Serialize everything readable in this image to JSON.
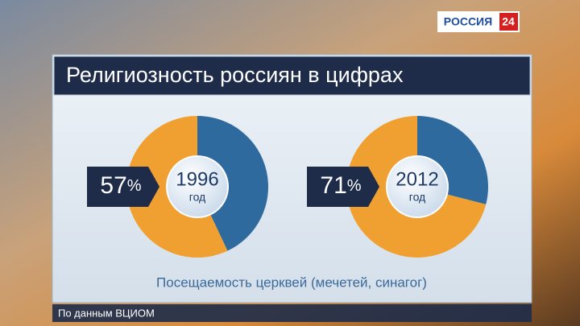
{
  "channel": {
    "name": "РОССИЯ",
    "number": "24"
  },
  "title": "Религиозность россиян в цифрах",
  "caption": "Посещаемость церквей (мечетей, синагог)",
  "source": "По данным ВЦИОМ",
  "chart_data": [
    {
      "type": "pie",
      "center_label": "1996",
      "center_sublabel": "год",
      "values": [
        57,
        43
      ],
      "value_labels": [
        "57%",
        null
      ],
      "colors": [
        "#f0a030",
        "#2f6a9e"
      ]
    },
    {
      "type": "pie",
      "center_label": "2012",
      "center_sublabel": "год",
      "values": [
        71,
        29
      ],
      "value_labels": [
        "71%",
        null
      ],
      "colors": [
        "#f0a030",
        "#2f6a9e"
      ]
    }
  ]
}
